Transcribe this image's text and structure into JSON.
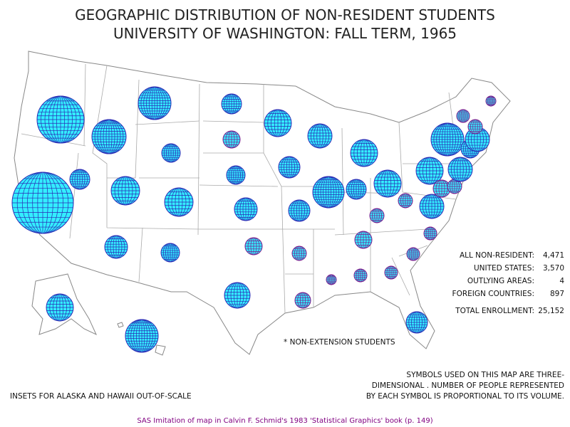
{
  "title": [
    "GEOGRAPHIC DISTRIBUTION OF NON-RESIDENT STUDENTS",
    "UNIVERSITY OF WASHINGTON: FALL TERM, 1965"
  ],
  "summary": {
    "rows": [
      {
        "label": "ALL NON-RESIDENT:",
        "value": "4,471"
      },
      {
        "label": "UNITED STATES:",
        "value": "3,570"
      },
      {
        "label": "OUTLYING AREAS:",
        "value": "4"
      },
      {
        "label": "FOREIGN COUNTRIES:",
        "value": "897"
      },
      {
        "label": "TOTAL ENROLLMENT:",
        "value": "25,152"
      }
    ]
  },
  "footnote": "* NON-EXTENSION STUDENTS",
  "symbol_note": [
    "SYMBOLS USED ON THIS MAP ARE THREE-",
    "DIMENSIONAL . NUMBER OF PEOPLE REPRESENTED",
    "BY EACH SYMBOL IS PROPORTIONAL TO ITS VOLUME."
  ],
  "inset_note": "INSETS FOR ALASKA AND HAWAII OUT-OF-SCALE",
  "caption": "SAS Imitation of map in Calvin F. Schmid's 1983 'Statistical Graphics' book (p. 149)"
}
